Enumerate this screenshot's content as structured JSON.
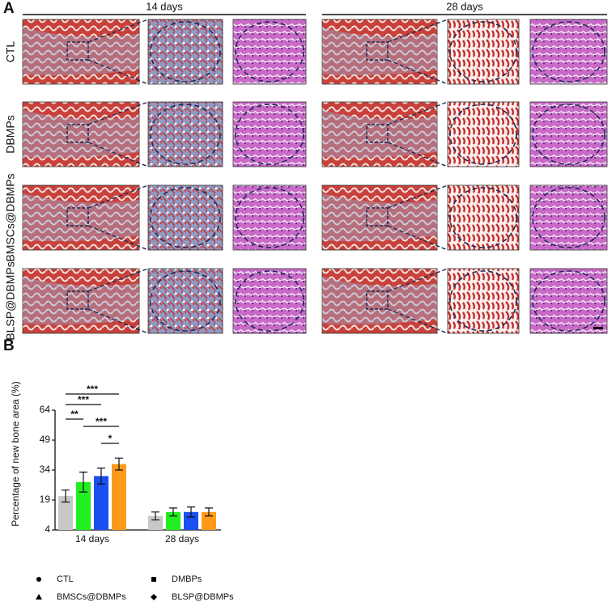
{
  "panel_a": {
    "label": "A",
    "columns": [
      "14 days",
      "28 days"
    ],
    "rows": [
      "CTL",
      "DBMPs",
      "BMSCs@DBMPs",
      "BLSP@DBMPs"
    ]
  },
  "chart_data": {
    "type": "bar",
    "panel_label": "B",
    "ylabel": "Percentage of new bone area (%)",
    "categories": [
      "14 days",
      "28 days"
    ],
    "series": [
      {
        "name": "CTL",
        "color": "#c8c8c8",
        "marker": "circle",
        "values": [
          21,
          11
        ],
        "errors": [
          3,
          2
        ]
      },
      {
        "name": "DMBPs",
        "color": "#22ee22",
        "marker": "square",
        "values": [
          28,
          13
        ],
        "errors": [
          5,
          2
        ]
      },
      {
        "name": "BMSCs@DBMPs",
        "color": "#1a4ff0",
        "marker": "triangle",
        "values": [
          31,
          13
        ],
        "errors": [
          4,
          2.5
        ]
      },
      {
        "name": "BLSP@DBMPs",
        "color": "#ff9a1a",
        "marker": "diamond",
        "values": [
          37,
          13
        ],
        "errors": [
          3,
          2
        ]
      }
    ],
    "ylim": [
      4,
      64
    ],
    "yticks": [
      4,
      19,
      34,
      49,
      64
    ],
    "annotations": [
      "***",
      "***",
      "**",
      "***",
      "*"
    ]
  }
}
